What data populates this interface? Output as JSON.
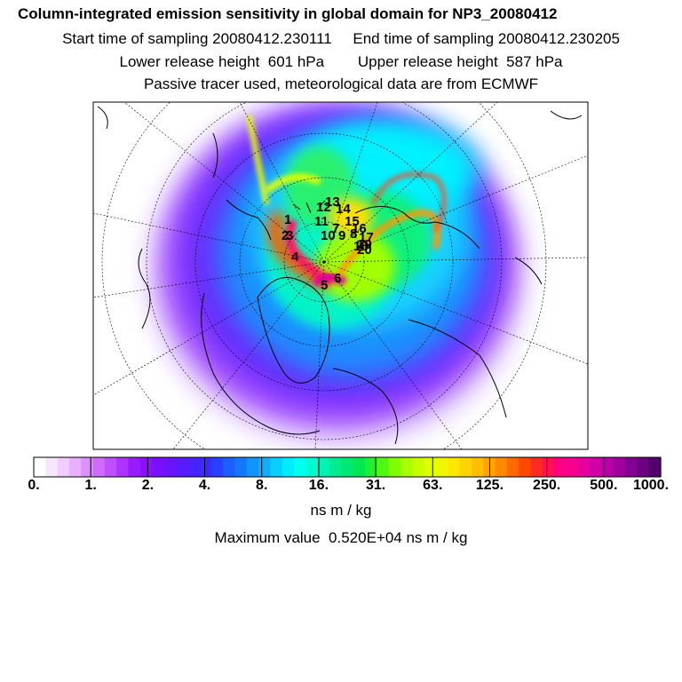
{
  "header": {
    "title": "Column-integrated emission sensitivity in global domain for NP3_20080412",
    "start_label": "Start time of sampling 20080412.230111",
    "end_label": "End time of sampling 20080412.230205",
    "lower_label": "Lower release height  601 hPa",
    "upper_label": "Upper release height  587 hPa",
    "tracer_label": "Passive tracer used, meteorological data are from ECMWF"
  },
  "map": {
    "projection": "polar-stereographic",
    "release_points": [
      "1",
      "2",
      "3",
      "4",
      "5",
      "6",
      "7",
      "8",
      "9",
      "10",
      "11",
      "12",
      "13",
      "14",
      "15",
      "16",
      "17",
      "18",
      "19",
      "20"
    ]
  },
  "colorbar": {
    "ticks": [
      "0.",
      "1.",
      "2.",
      "4.",
      "8.",
      "16.",
      "31.",
      "63.",
      "125.",
      "250.",
      "500.",
      "1000."
    ],
    "colors": [
      "#ffffff",
      "#f8e6ff",
      "#f0ccff",
      "#e8b0ff",
      "#dd90ff",
      "#cf6cff",
      "#c050ff",
      "#ad33ff",
      "#9a1aff",
      "#8a10ff",
      "#7a10ff",
      "#6a14ff",
      "#5a1aff",
      "#4a22ff",
      "#3a2aff",
      "#2a40ff",
      "#1a60ff",
      "#1478ff",
      "#1094ff",
      "#0cb0ff",
      "#08cfff",
      "#00ecff",
      "#00ffee",
      "#00fbd0",
      "#00f3b0",
      "#00ec90",
      "#00e870",
      "#00e850",
      "#20f030",
      "#50f810",
      "#80ff00",
      "#a8ff00",
      "#c8ff00",
      "#e0ff00",
      "#f0f800",
      "#ffe800",
      "#ffd400",
      "#ffbf00",
      "#ffa400",
      "#ff8a00",
      "#ff6a00",
      "#ff4800",
      "#ff2a20",
      "#ff1050",
      "#ff0080",
      "#f6008f",
      "#e6009d",
      "#d000a8",
      "#b800a8",
      "#9e009e",
      "#830092",
      "#6b0080",
      "#52006a"
    ],
    "units": "ns m / kg"
  },
  "footer": {
    "max_label": "Maximum value  0.520E+04 ns m / kg"
  }
}
